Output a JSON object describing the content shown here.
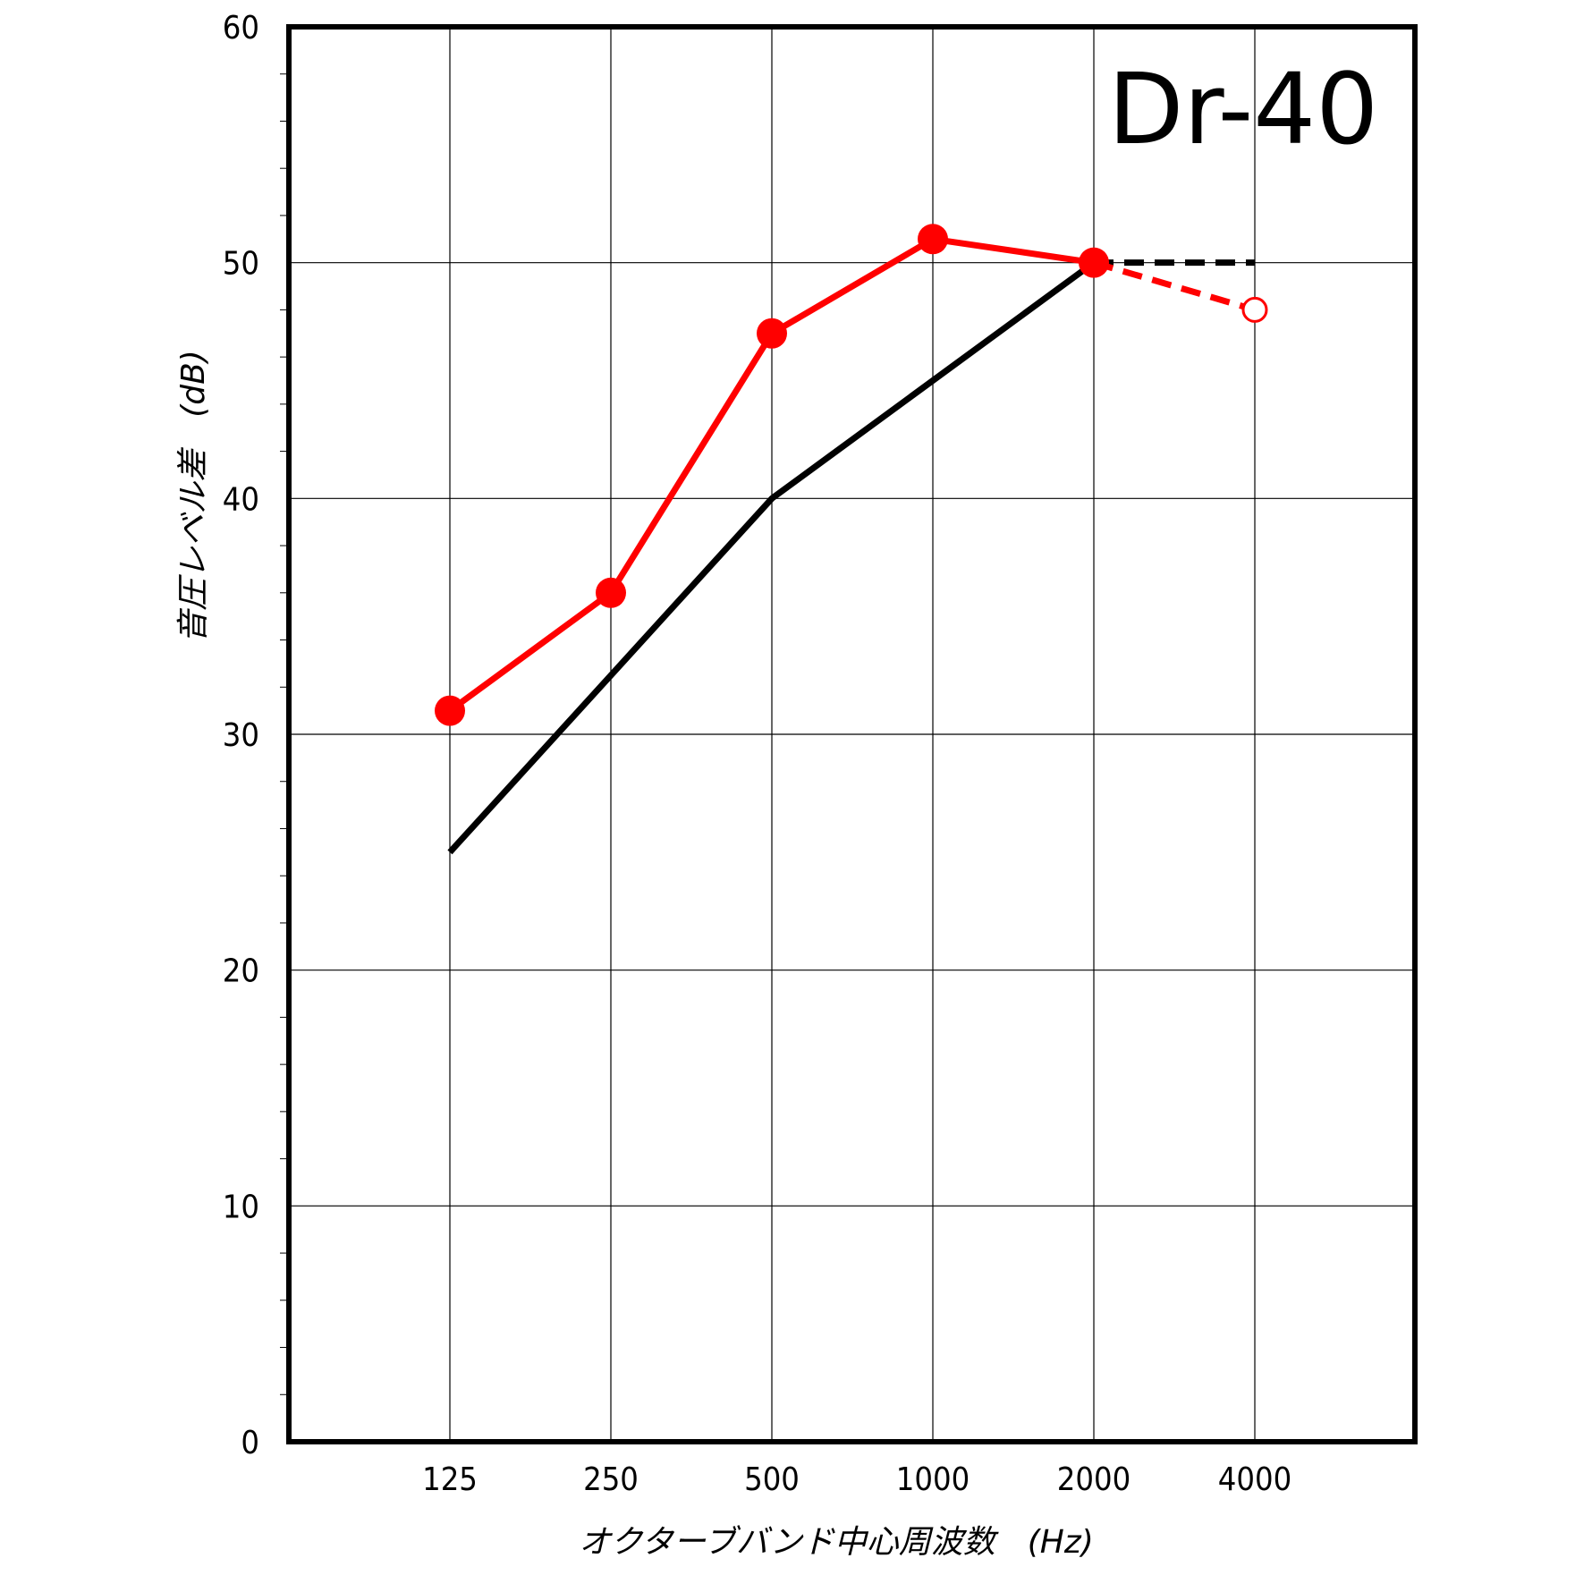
{
  "chart_data": {
    "type": "line",
    "title": "Dr-40",
    "xlabel": "オクターブバンド中心周波数　(Hz)",
    "ylabel": "音圧レベル差　(dB)",
    "categories": [
      "125",
      "250",
      "500",
      "1000",
      "2000",
      "4000"
    ],
    "ylim": [
      0,
      60
    ],
    "yticks": [
      0,
      10,
      20,
      30,
      40,
      50,
      60
    ],
    "grid": true,
    "series": [
      {
        "color": "#ff0000",
        "values": [
          31,
          36,
          47,
          51,
          50,
          48
        ],
        "markers": "filled-circle",
        "last_segment_dashed": true,
        "last_marker": "open-circle"
      },
      {
        "color": "#000000",
        "values": [
          25,
          32.5,
          40,
          45,
          50,
          50
        ],
        "markers": "none",
        "last_segment_dashed": true
      }
    ]
  }
}
